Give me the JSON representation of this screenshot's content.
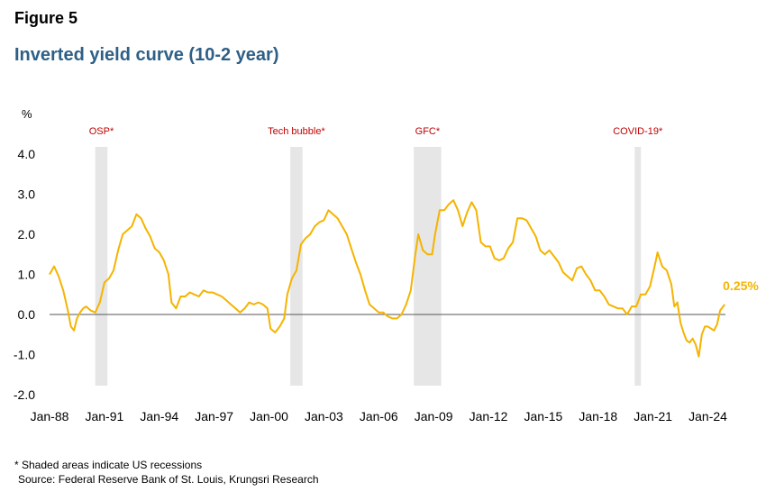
{
  "figure_label": "Figure 5",
  "chart_data": {
    "type": "line",
    "title": "Inverted yield curve (10-2 year)",
    "ylabel": "%",
    "ylim": [
      -2.0,
      4.0
    ],
    "yticks": [
      "4.0",
      "3.0",
      "2.0",
      "1.0",
      "0.0",
      "-1.0",
      "-2.0"
    ],
    "xticks": [
      "Jan-88",
      "Jan-91",
      "Jan-94",
      "Jan-97",
      "Jan-00",
      "Jan-03",
      "Jan-06",
      "Jan-09",
      "Jan-12",
      "Jan-15",
      "Jan-18",
      "Jan-21",
      "Jan-24"
    ],
    "series": [
      {
        "color": "#f5b400",
        "points": [
          [
            "1988-01",
            1.0
          ],
          [
            "1988-04",
            1.2
          ],
          [
            "1988-07",
            0.95
          ],
          [
            "1988-10",
            0.6
          ],
          [
            "1989-01",
            0.1
          ],
          [
            "1989-03",
            -0.3
          ],
          [
            "1989-05",
            -0.4
          ],
          [
            "1989-07",
            -0.1
          ],
          [
            "1989-09",
            0.05
          ],
          [
            "1989-11",
            0.15
          ],
          [
            "1990-01",
            0.2
          ],
          [
            "1990-04",
            0.1
          ],
          [
            "1990-07",
            0.05
          ],
          [
            "1990-10",
            0.3
          ],
          [
            "1991-01",
            0.8
          ],
          [
            "1991-04",
            0.9
          ],
          [
            "1991-07",
            1.1
          ],
          [
            "1991-10",
            1.6
          ],
          [
            "1992-01",
            2.0
          ],
          [
            "1992-04",
            2.1
          ],
          [
            "1992-07",
            2.2
          ],
          [
            "1992-10",
            2.5
          ],
          [
            "1993-01",
            2.4
          ],
          [
            "1993-04",
            2.15
          ],
          [
            "1993-07",
            1.95
          ],
          [
            "1993-10",
            1.65
          ],
          [
            "1994-01",
            1.55
          ],
          [
            "1994-04",
            1.35
          ],
          [
            "1994-07",
            1.0
          ],
          [
            "1994-09",
            0.3
          ],
          [
            "1994-12",
            0.15
          ],
          [
            "1995-03",
            0.45
          ],
          [
            "1995-06",
            0.45
          ],
          [
            "1995-09",
            0.55
          ],
          [
            "1995-12",
            0.5
          ],
          [
            "1996-03",
            0.45
          ],
          [
            "1996-06",
            0.6
          ],
          [
            "1996-09",
            0.55
          ],
          [
            "1996-12",
            0.55
          ],
          [
            "1997-03",
            0.5
          ],
          [
            "1997-06",
            0.45
          ],
          [
            "1997-09",
            0.35
          ],
          [
            "1997-12",
            0.25
          ],
          [
            "1998-03",
            0.15
          ],
          [
            "1998-06",
            0.05
          ],
          [
            "1998-09",
            0.15
          ],
          [
            "1998-12",
            0.3
          ],
          [
            "1999-03",
            0.25
          ],
          [
            "1999-06",
            0.3
          ],
          [
            "1999-09",
            0.25
          ],
          [
            "1999-12",
            0.15
          ],
          [
            "2000-02",
            -0.35
          ],
          [
            "2000-05",
            -0.45
          ],
          [
            "2000-08",
            -0.3
          ],
          [
            "2000-11",
            -0.1
          ],
          [
            "2001-01",
            0.5
          ],
          [
            "2001-04",
            0.9
          ],
          [
            "2001-07",
            1.1
          ],
          [
            "2001-10",
            1.75
          ],
          [
            "2002-01",
            1.9
          ],
          [
            "2002-04",
            2.0
          ],
          [
            "2002-07",
            2.2
          ],
          [
            "2002-10",
            2.3
          ],
          [
            "2003-01",
            2.35
          ],
          [
            "2003-04",
            2.6
          ],
          [
            "2003-07",
            2.5
          ],
          [
            "2003-10",
            2.4
          ],
          [
            "2004-01",
            2.2
          ],
          [
            "2004-04",
            2.0
          ],
          [
            "2004-07",
            1.65
          ],
          [
            "2004-10",
            1.3
          ],
          [
            "2005-01",
            1.0
          ],
          [
            "2005-04",
            0.6
          ],
          [
            "2005-07",
            0.25
          ],
          [
            "2005-10",
            0.15
          ],
          [
            "2006-01",
            0.05
          ],
          [
            "2006-04",
            0.05
          ],
          [
            "2006-07",
            -0.05
          ],
          [
            "2006-10",
            -0.1
          ],
          [
            "2007-01",
            -0.1
          ],
          [
            "2007-04",
            0.0
          ],
          [
            "2007-07",
            0.25
          ],
          [
            "2007-10",
            0.6
          ],
          [
            "2008-01",
            1.5
          ],
          [
            "2008-03",
            2.0
          ],
          [
            "2008-06",
            1.6
          ],
          [
            "2008-09",
            1.5
          ],
          [
            "2008-12",
            1.5
          ],
          [
            "2009-02",
            2.0
          ],
          [
            "2009-05",
            2.6
          ],
          [
            "2009-08",
            2.6
          ],
          [
            "2009-11",
            2.75
          ],
          [
            "2010-02",
            2.85
          ],
          [
            "2010-05",
            2.6
          ],
          [
            "2010-08",
            2.2
          ],
          [
            "2010-11",
            2.55
          ],
          [
            "2011-02",
            2.8
          ],
          [
            "2011-05",
            2.6
          ],
          [
            "2011-08",
            1.8
          ],
          [
            "2011-11",
            1.7
          ],
          [
            "2012-02",
            1.7
          ],
          [
            "2012-05",
            1.4
          ],
          [
            "2012-08",
            1.35
          ],
          [
            "2012-11",
            1.4
          ],
          [
            "2013-02",
            1.65
          ],
          [
            "2013-05",
            1.8
          ],
          [
            "2013-08",
            2.4
          ],
          [
            "2013-11",
            2.4
          ],
          [
            "2014-02",
            2.35
          ],
          [
            "2014-05",
            2.15
          ],
          [
            "2014-08",
            1.95
          ],
          [
            "2014-11",
            1.6
          ],
          [
            "2015-02",
            1.5
          ],
          [
            "2015-05",
            1.6
          ],
          [
            "2015-08",
            1.45
          ],
          [
            "2015-11",
            1.3
          ],
          [
            "2016-02",
            1.05
          ],
          [
            "2016-05",
            0.95
          ],
          [
            "2016-08",
            0.85
          ],
          [
            "2016-11",
            1.15
          ],
          [
            "2017-02",
            1.2
          ],
          [
            "2017-05",
            1.0
          ],
          [
            "2017-08",
            0.85
          ],
          [
            "2017-11",
            0.6
          ],
          [
            "2018-02",
            0.6
          ],
          [
            "2018-05",
            0.45
          ],
          [
            "2018-08",
            0.25
          ],
          [
            "2018-11",
            0.2
          ],
          [
            "2019-02",
            0.15
          ],
          [
            "2019-05",
            0.15
          ],
          [
            "2019-08",
            0.0
          ],
          [
            "2019-11",
            0.2
          ],
          [
            "2020-02",
            0.2
          ],
          [
            "2020-05",
            0.5
          ],
          [
            "2020-08",
            0.5
          ],
          [
            "2020-11",
            0.7
          ],
          [
            "2021-02",
            1.2
          ],
          [
            "2021-04",
            1.55
          ],
          [
            "2021-07",
            1.2
          ],
          [
            "2021-10",
            1.1
          ],
          [
            "2022-01",
            0.75
          ],
          [
            "2022-03",
            0.2
          ],
          [
            "2022-05",
            0.3
          ],
          [
            "2022-07",
            -0.2
          ],
          [
            "2022-09",
            -0.45
          ],
          [
            "2022-11",
            -0.65
          ],
          [
            "2023-01",
            -0.7
          ],
          [
            "2023-03",
            -0.6
          ],
          [
            "2023-05",
            -0.75
          ],
          [
            "2023-07",
            -1.05
          ],
          [
            "2023-09",
            -0.5
          ],
          [
            "2023-11",
            -0.3
          ],
          [
            "2024-01",
            -0.3
          ],
          [
            "2024-03",
            -0.35
          ],
          [
            "2024-05",
            -0.4
          ],
          [
            "2024-07",
            -0.25
          ],
          [
            "2024-09",
            0.1
          ],
          [
            "2024-11",
            0.2
          ],
          [
            "2024-12",
            0.25
          ]
        ]
      }
    ],
    "last_value_label": "0.25%",
    "recessions": [
      {
        "label": "OSP*",
        "start": "1990-07",
        "end": "1991-03"
      },
      {
        "label": "Tech bubble*",
        "start": "2001-03",
        "end": "2001-11"
      },
      {
        "label": "GFC*",
        "start": "2007-12",
        "end": "2009-06"
      },
      {
        "label": "COVID-19*",
        "start": "2020-02",
        "end": "2020-04"
      }
    ],
    "colors": {
      "line": "#f5b400",
      "recession_shade": "#e6e6e6",
      "recession_label": "#c00000",
      "title": "#2e5f86",
      "zero_line": "#555555"
    }
  },
  "notes": {
    "shaded": "* Shaded areas indicate US recessions",
    "source": "Source: Federal Reserve Bank of St. Louis, Krungsri Research"
  }
}
